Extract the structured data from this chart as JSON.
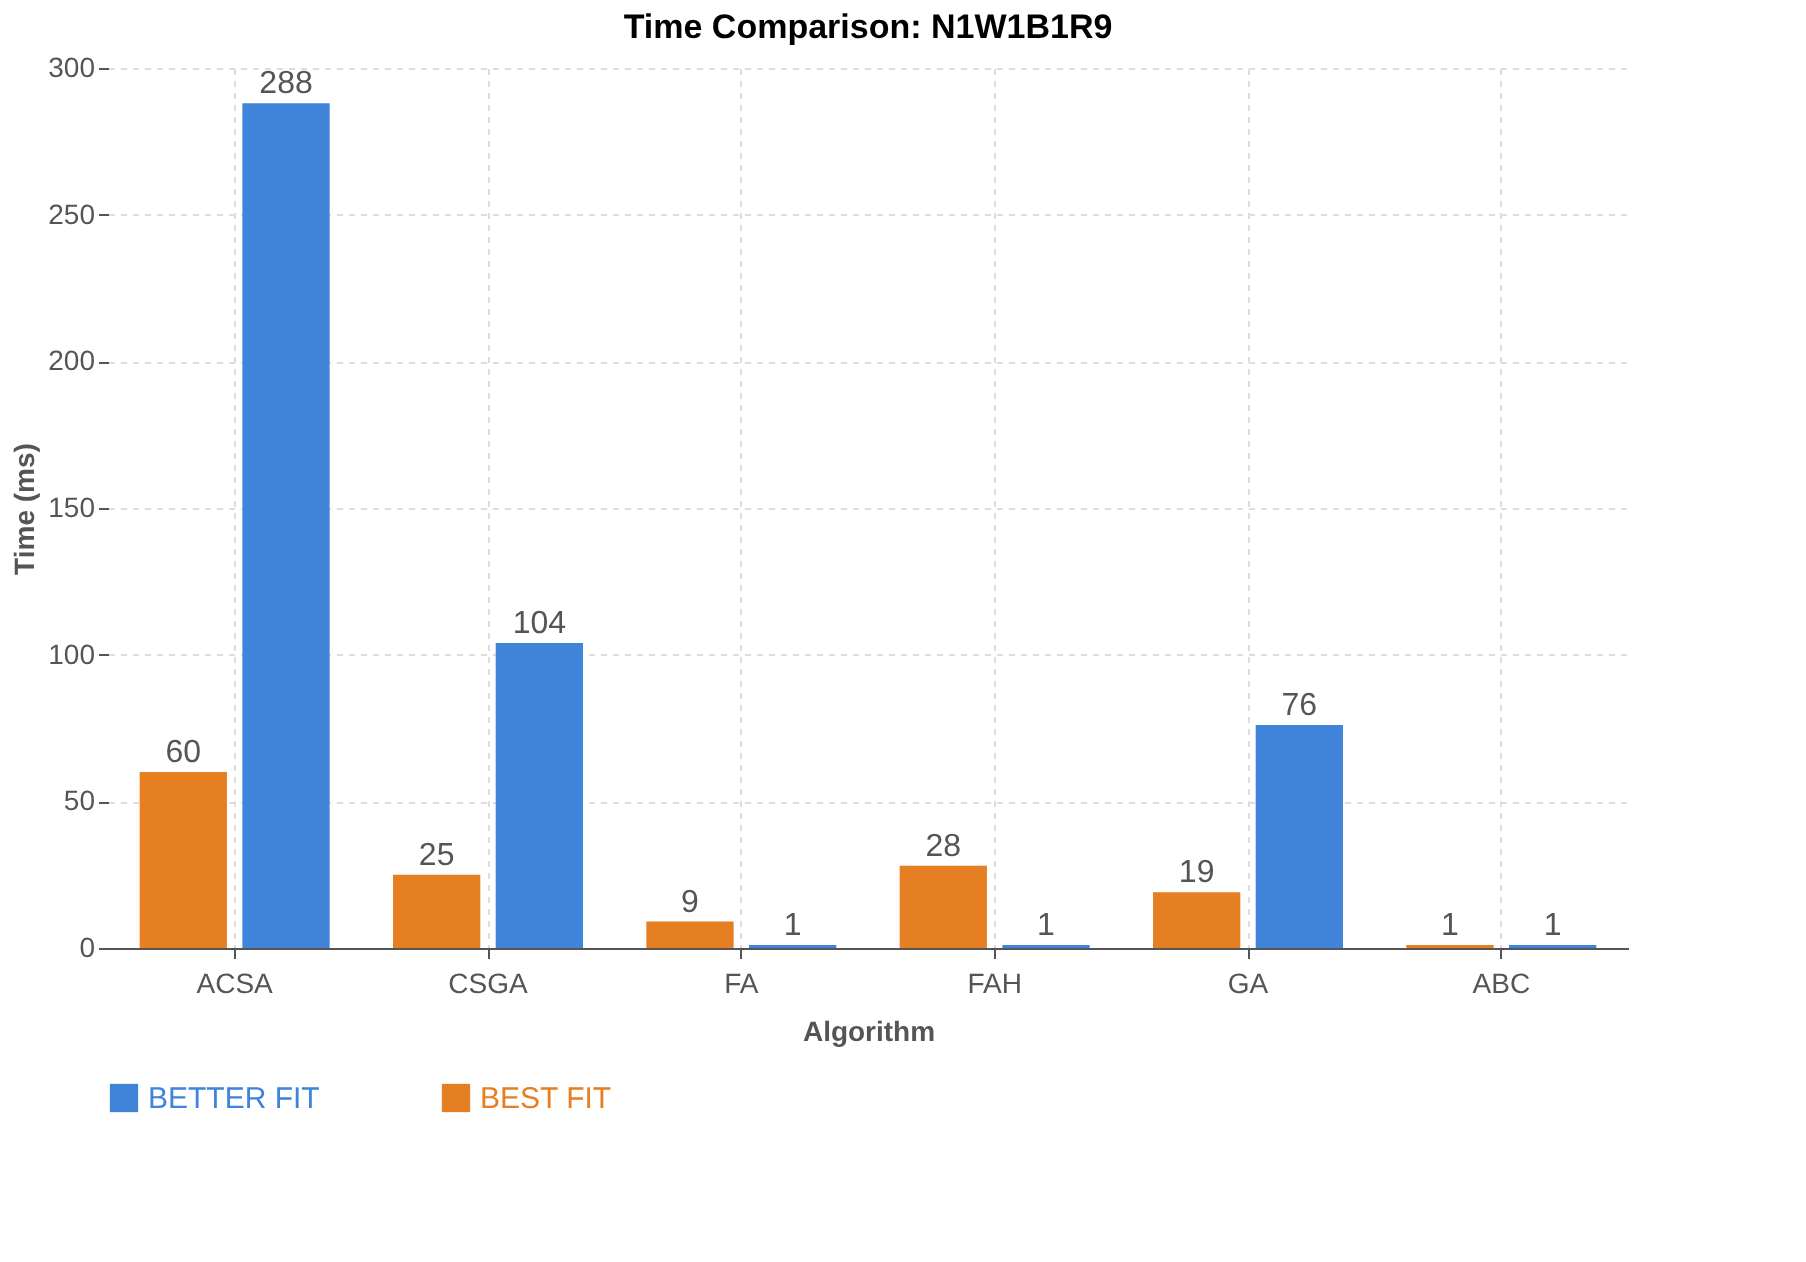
{
  "chart_data": {
    "type": "bar",
    "title": "Time Comparison: N1W1B1R9",
    "xlabel": "Algorithm",
    "ylabel": "Time (ms)",
    "categories": [
      "ACSA",
      "CSGA",
      "FA",
      "FAH",
      "GA",
      "ABC"
    ],
    "series": [
      {
        "name": "BEST FIT",
        "color": "#e67e22",
        "values": [
          60,
          25,
          9,
          28,
          19,
          1
        ]
      },
      {
        "name": "BETTER FIT",
        "color": "#3f84d8",
        "values": [
          288,
          104,
          1,
          1,
          76,
          1
        ]
      }
    ],
    "ylim": [
      0,
      300
    ],
    "yticks": [
      0,
      50,
      100,
      150,
      200,
      250,
      300
    ],
    "grid": true,
    "legend": "bottom",
    "data_labels": true
  }
}
